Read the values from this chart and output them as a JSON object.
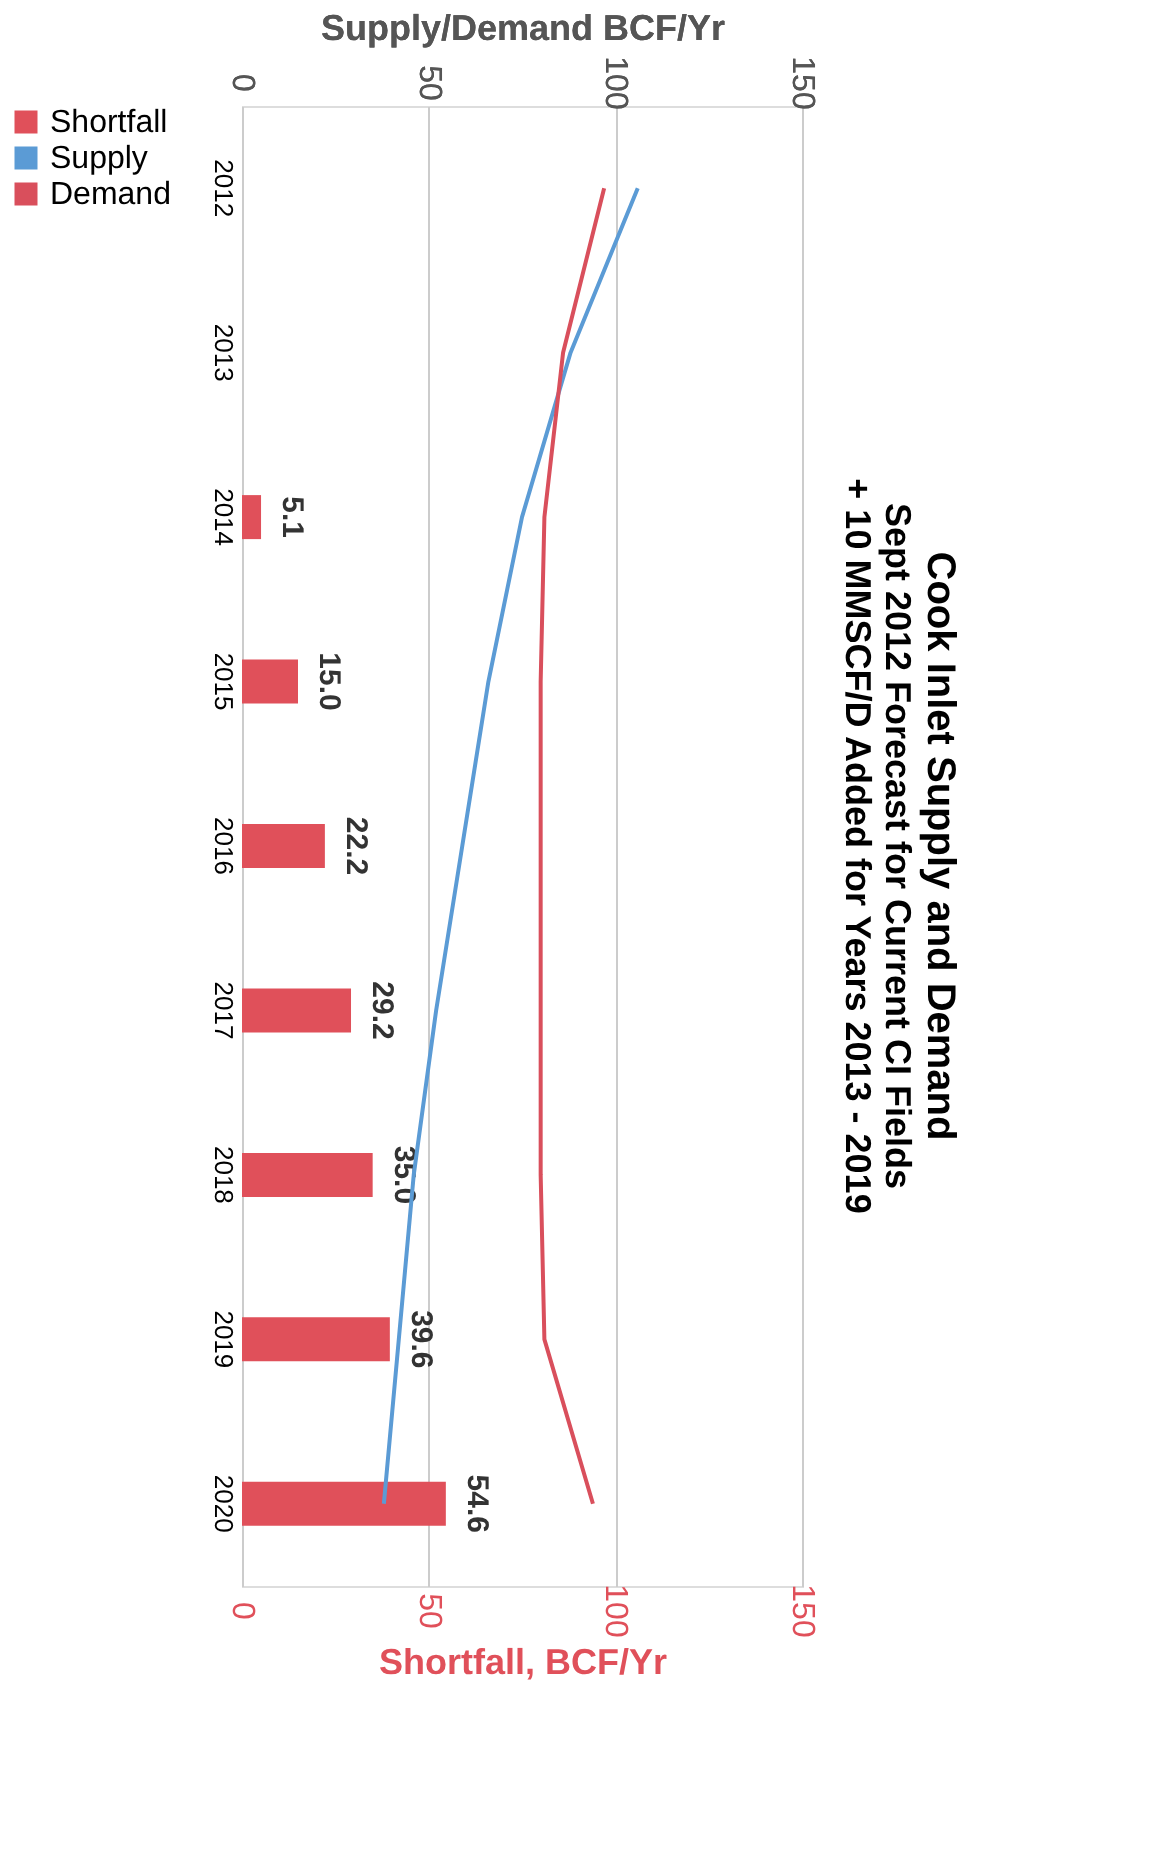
{
  "chart_data": {
    "type": "bar",
    "orientation": "horizontal",
    "title": "Cook Inlet Supply and Demand",
    "subtitle": [
      "Sept 2012 Forecast for Current CI Fields",
      "+ 10 MMSCF/D Added for Years 2013 - 2019"
    ],
    "categories": [
      "2012",
      "2013",
      "2014",
      "2015",
      "2016",
      "2017",
      "2018",
      "2019",
      "2020"
    ],
    "xlabel": "Shortfall, BCF/Yr",
    "xlim": [
      0,
      150
    ],
    "xticks": [
      0,
      50,
      100,
      150
    ],
    "x2label": "Supply/Demand BCF/Yr",
    "x2lim": [
      0,
      150
    ],
    "x2ticks": [
      0,
      50,
      100,
      150
    ],
    "grid": "x",
    "legend": "left",
    "series": [
      {
        "name": "Shortfall",
        "color": "#e0505a",
        "values": [
          null,
          null,
          5.1,
          15.0,
          22.2,
          29.2,
          35.0,
          39.6,
          54.6
        ],
        "value_labels": [
          null,
          null,
          "5.1",
          "15.0",
          "22.2",
          "29.2",
          "35.0",
          "39.6",
          "54.6"
        ]
      },
      {
        "name": "Supply",
        "type": "line",
        "axis": "x2",
        "color": "#5b9bd5",
        "values": [
          106,
          88,
          75,
          66,
          59,
          52,
          46,
          42,
          38
        ]
      },
      {
        "name": "Demand",
        "type": "line",
        "axis": "x2",
        "color": "#d94f5c",
        "values": [
          97,
          86,
          81,
          80,
          80,
          80,
          80,
          81,
          94
        ]
      }
    ]
  }
}
